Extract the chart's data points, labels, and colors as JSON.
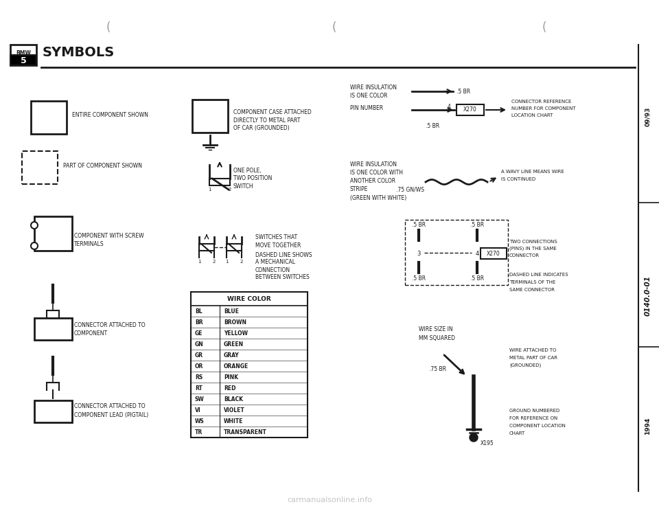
{
  "title": "SYMBOLS",
  "bg_color": "#ffffff",
  "text_color": "#1a1a1a",
  "line_color": "#1a1a1a",
  "sidebar_right_text_top": "09/93",
  "sidebar_right_text_mid": "0140.0-01",
  "sidebar_right_text_bot": "1994",
  "wire_color_table": {
    "header": "WIRE COLOR",
    "rows": [
      [
        "BL",
        "BLUE"
      ],
      [
        "BR",
        "BROWN"
      ],
      [
        "GE",
        "YELLOW"
      ],
      [
        "GN",
        "GREEN"
      ],
      [
        "GR",
        "GRAY"
      ],
      [
        "OR",
        "ORANGE"
      ],
      [
        "RS",
        "PINK"
      ],
      [
        "RT",
        "RED"
      ],
      [
        "SW",
        "BLACK"
      ],
      [
        "VI",
        "VIOLET"
      ],
      [
        "WS",
        "WHITE"
      ],
      [
        "TR",
        "TRANSPARENT"
      ]
    ]
  }
}
